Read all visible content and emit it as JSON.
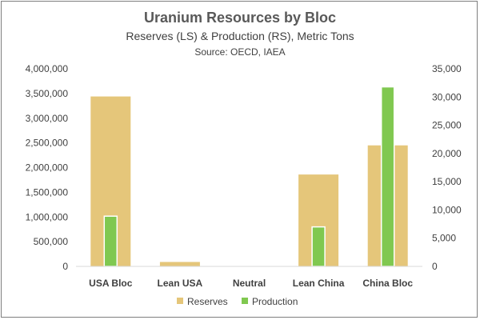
{
  "chart_data": {
    "type": "bar",
    "title": "Uranium Resources by Bloc",
    "subtitle": "Reserves (LS) & Production (RS), Metric Tons",
    "source": "Source:  OECD, IAEA",
    "categories": [
      "USA Bloc",
      "Lean USA",
      "Neutral",
      "Lean China",
      "China Bloc"
    ],
    "series": [
      {
        "name": "Reserves",
        "axis": "left",
        "color": "#E5C67A",
        "values": [
          3440000,
          90000,
          0,
          1860000,
          2450000
        ]
      },
      {
        "name": "Production",
        "axis": "right",
        "color": "#80C850",
        "values": [
          8900,
          0,
          0,
          7000,
          31800
        ]
      }
    ],
    "y_left": {
      "ylim": [
        0,
        4000000
      ],
      "ticks": [
        0,
        500000,
        1000000,
        1500000,
        2000000,
        2500000,
        3000000,
        3500000,
        4000000
      ],
      "tick_labels": [
        "0",
        "500,000",
        "1,000,000",
        "1,500,000",
        "2,000,000",
        "2,500,000",
        "3,000,000",
        "3,500,000",
        "4,000,000"
      ]
    },
    "y_right": {
      "ylim": [
        0,
        35000
      ],
      "ticks": [
        0,
        5000,
        10000,
        15000,
        20000,
        25000,
        30000,
        35000
      ],
      "tick_labels": [
        "0",
        "5,000",
        "10,000",
        "15,000",
        "20,000",
        "25,000",
        "30,000",
        "35,000"
      ]
    },
    "grid": false,
    "legend": {
      "placement": "bottom",
      "entries": [
        "Reserves",
        "Production"
      ]
    }
  }
}
